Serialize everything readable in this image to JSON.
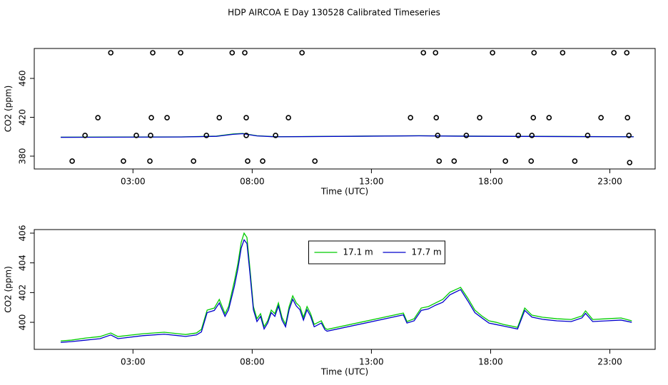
{
  "chart_data": [
    {
      "type": "line",
      "title": "HDP AIRCOA E  Day 130528  Calibrated Timeseries",
      "xlabel": "Time (UTC)",
      "ylabel": "CO2 (ppm)",
      "xlim": [
        -1.14,
        24.9
      ],
      "ylim": [
        366.8,
        490.8
      ],
      "xticks": [
        {
          "value": 3,
          "label": "03:00"
        },
        {
          "value": 8,
          "label": "08:00"
        },
        {
          "value": 13,
          "label": "13:00"
        },
        {
          "value": 18,
          "label": "18:00"
        },
        {
          "value": 23,
          "label": "23:00"
        }
      ],
      "yticks": [
        380,
        420,
        460
      ],
      "series": [
        {
          "color": "#00cc00",
          "style": "line",
          "x": [
            -0.03,
            5.0,
            6.5,
            7.2,
            7.6,
            8.2,
            9.0,
            15.0,
            17.0,
            24.0
          ],
          "values": [
            399.5,
            399.8,
            400.6,
            402.8,
            403.4,
            401.0,
            400.0,
            401.0,
            400.6,
            400.0
          ]
        },
        {
          "color": "#0000cc",
          "style": "line",
          "x": [
            -0.03,
            5.0,
            6.5,
            7.2,
            7.6,
            8.2,
            9.0,
            15.0,
            17.0,
            24.0
          ],
          "values": [
            399.4,
            399.7,
            400.4,
            402.5,
            403.1,
            400.8,
            399.9,
            400.9,
            400.5,
            399.9
          ]
        },
        {
          "color": "#000000",
          "style": "points",
          "x": [
            2.07,
            3.83,
            5.0,
            7.16,
            7.69,
            10.09,
            15.18,
            15.69,
            18.08,
            19.82,
            21.02,
            23.17,
            23.71,
            1.53,
            3.77,
            4.43,
            6.62,
            7.75,
            9.52,
            14.64,
            15.72,
            17.54,
            19.79,
            20.45,
            22.63,
            23.74,
            0.99,
            3.14,
            3.74,
            6.08,
            7.75,
            8.98,
            15.78,
            16.98,
            19.16,
            19.73,
            22.07,
            23.8,
            0.45,
            2.6,
            3.71,
            5.54,
            7.81,
            8.44,
            10.63,
            15.84,
            16.47,
            18.62,
            19.7,
            21.53,
            23.83
          ],
          "values": [
            486.4,
            486.4,
            486.4,
            486.4,
            486.4,
            486.4,
            486.4,
            486.4,
            486.4,
            486.4,
            486.4,
            486.4,
            486.4,
            419.6,
            419.6,
            419.6,
            419.6,
            419.6,
            419.6,
            419.6,
            419.6,
            419.6,
            419.6,
            419.6,
            419.6,
            419.6,
            401.3,
            401.3,
            401.3,
            401.3,
            401.3,
            401.3,
            401.3,
            401.3,
            401.3,
            401.3,
            401.3,
            401.3,
            374.9,
            374.9,
            374.9,
            374.9,
            374.9,
            374.9,
            374.9,
            374.9,
            374.9,
            374.9,
            374.9,
            374.9,
            373.4
          ]
        }
      ]
    },
    {
      "type": "line",
      "xlabel": "Time (UTC)",
      "ylabel": "CO2 (ppm)",
      "xlim": [
        -1.14,
        24.9
      ],
      "ylim": [
        398.18,
        406.24
      ],
      "xticks": [
        {
          "value": 3,
          "label": "03:00"
        },
        {
          "value": 8,
          "label": "08:00"
        },
        {
          "value": 13,
          "label": "13:00"
        },
        {
          "value": 18,
          "label": "18:00"
        },
        {
          "value": 23,
          "label": "23:00"
        }
      ],
      "yticks": [
        400,
        402,
        404,
        406
      ],
      "legend": "top",
      "series": [
        {
          "name": "17.1 m",
          "color": "#00cc00",
          "style": "line",
          "x": [
            -0.03,
            0.42,
            1.02,
            1.62,
            2.07,
            2.37,
            3.41,
            4.31,
            5.21,
            5.66,
            5.87,
            6.11,
            6.41,
            6.62,
            6.86,
            7.01,
            7.25,
            7.4,
            7.54,
            7.66,
            7.78,
            7.9,
            8.05,
            8.2,
            8.35,
            8.5,
            8.65,
            8.8,
            8.95,
            9.1,
            9.25,
            9.4,
            9.55,
            9.7,
            9.85,
            10.0,
            10.15,
            10.3,
            10.45,
            10.6,
            10.9,
            11.05,
            11.14,
            14.34,
            14.49,
            14.79,
            15.09,
            15.39,
            15.69,
            15.99,
            16.29,
            16.74,
            17.04,
            17.34,
            17.63,
            17.93,
            18.23,
            18.53,
            18.83,
            19.13,
            19.43,
            19.73,
            20.18,
            20.78,
            21.38,
            21.83,
            21.98,
            22.28,
            22.87,
            23.47,
            23.92
          ],
          "values": [
            398.75,
            398.8,
            398.94,
            399.04,
            399.28,
            399.04,
            399.23,
            399.33,
            399.18,
            399.28,
            399.52,
            400.82,
            400.96,
            401.54,
            400.58,
            401.06,
            402.74,
            403.94,
            405.38,
            406.0,
            405.71,
            403.7,
            401.06,
            400.24,
            400.58,
            399.71,
            400.1,
            400.82,
            400.58,
            401.3,
            400.34,
            399.86,
            401.06,
            401.78,
            401.3,
            401.06,
            400.34,
            401.06,
            400.58,
            399.86,
            400.1,
            399.62,
            399.52,
            400.62,
            400.05,
            400.24,
            400.96,
            401.06,
            401.3,
            401.54,
            402.02,
            402.35,
            401.63,
            400.82,
            400.43,
            400.1,
            400.0,
            399.86,
            399.76,
            399.66,
            400.96,
            400.48,
            400.34,
            400.24,
            400.19,
            400.43,
            400.77,
            400.19,
            400.24,
            400.29,
            400.1
          ]
        },
        {
          "name": "17.7 m",
          "color": "#0000cc",
          "style": "line",
          "x": [
            -0.03,
            0.42,
            1.02,
            1.62,
            2.07,
            2.37,
            3.41,
            4.31,
            5.21,
            5.66,
            5.87,
            6.11,
            6.41,
            6.62,
            6.86,
            7.01,
            7.25,
            7.4,
            7.54,
            7.66,
            7.78,
            7.9,
            8.05,
            8.2,
            8.35,
            8.5,
            8.65,
            8.8,
            8.95,
            9.1,
            9.25,
            9.4,
            9.55,
            9.7,
            9.85,
            10.0,
            10.15,
            10.3,
            10.45,
            10.6,
            10.9,
            11.05,
            11.14,
            14.34,
            14.49,
            14.79,
            15.09,
            15.39,
            15.69,
            15.99,
            16.29,
            16.74,
            17.04,
            17.34,
            17.63,
            17.93,
            18.23,
            18.53,
            18.83,
            19.13,
            19.43,
            19.73,
            20.18,
            20.78,
            21.38,
            21.83,
            21.98,
            22.28,
            22.87,
            23.47,
            23.92
          ],
          "values": [
            398.65,
            398.7,
            398.8,
            398.9,
            399.15,
            398.9,
            399.1,
            399.2,
            399.05,
            399.15,
            399.35,
            400.65,
            400.8,
            401.3,
            400.4,
            400.85,
            402.4,
            403.6,
            405.0,
            405.55,
            405.3,
            403.4,
            400.85,
            400.05,
            400.4,
            399.55,
            399.95,
            400.65,
            400.4,
            401.1,
            400.15,
            399.7,
            400.85,
            401.55,
            401.1,
            400.85,
            400.15,
            400.85,
            400.4,
            399.7,
            399.95,
            399.5,
            399.4,
            400.5,
            399.95,
            400.1,
            400.8,
            400.9,
            401.15,
            401.35,
            401.85,
            402.2,
            401.45,
            400.65,
            400.3,
            399.95,
            399.85,
            399.75,
            399.65,
            399.55,
            400.8,
            400.35,
            400.2,
            400.1,
            400.05,
            400.3,
            400.6,
            400.05,
            400.1,
            400.15,
            400.0
          ]
        }
      ]
    }
  ]
}
